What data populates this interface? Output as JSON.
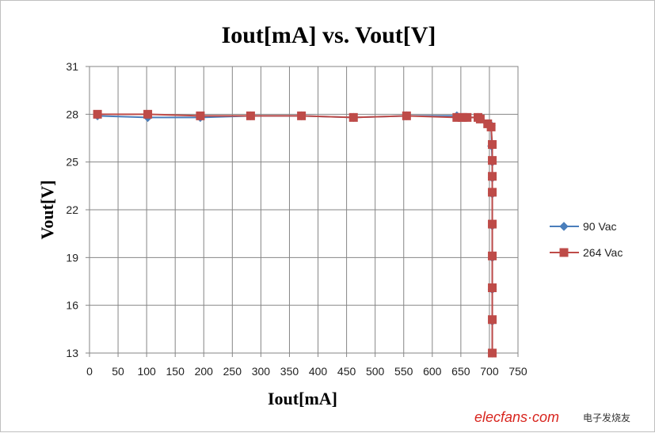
{
  "chart_data": {
    "type": "line",
    "title": "Iout[mA] vs. Vout[V]",
    "xlabel": "Iout[mA]",
    "ylabel": "Vout[V]",
    "xlim": [
      0,
      750
    ],
    "ylim": [
      13,
      31
    ],
    "xticks": [
      "0",
      "50",
      "100",
      "150",
      "200",
      "250",
      "300",
      "350",
      "400",
      "450",
      "500",
      "550",
      "600",
      "650",
      "700",
      "750"
    ],
    "yticks": [
      "13",
      "16",
      "19",
      "22",
      "25",
      "28",
      "31"
    ],
    "grid": true,
    "legend_position": "right",
    "series": [
      {
        "name": "90 Vac",
        "color": "#4a7ebb",
        "marker": "diamond",
        "x": [
          14,
          102,
          194,
          282,
          371,
          462,
          555,
          643,
          652,
          661,
          680,
          684,
          697,
          703,
          704,
          705,
          705,
          705,
          705,
          705,
          705,
          705,
          705,
          705,
          705
        ],
        "y": [
          27.9,
          27.8,
          27.8,
          27.9,
          27.9,
          27.8,
          27.9,
          27.9,
          27.8,
          27.8,
          27.8,
          27.7,
          27.4,
          27.3,
          26.0,
          25.0,
          24.0,
          23.0,
          21.0,
          19.0,
          17.0,
          15.0,
          13.0,
          19.0,
          17.0
        ]
      },
      {
        "name": "264 Vac",
        "color": "#be4b48",
        "marker": "square",
        "x": [
          14,
          102,
          194,
          282,
          371,
          462,
          555,
          643,
          652,
          661,
          680,
          684,
          697,
          703,
          705,
          705,
          705,
          705,
          705,
          705,
          705,
          705,
          705
        ],
        "y": [
          28.0,
          28.0,
          27.9,
          27.9,
          27.9,
          27.8,
          27.9,
          27.8,
          27.8,
          27.8,
          27.8,
          27.7,
          27.4,
          27.2,
          26.1,
          25.1,
          24.1,
          23.1,
          21.1,
          19.1,
          17.1,
          15.1,
          13.0
        ]
      }
    ]
  },
  "watermark": {
    "brand": "elecfans·com",
    "cn": "电子发烧友"
  }
}
